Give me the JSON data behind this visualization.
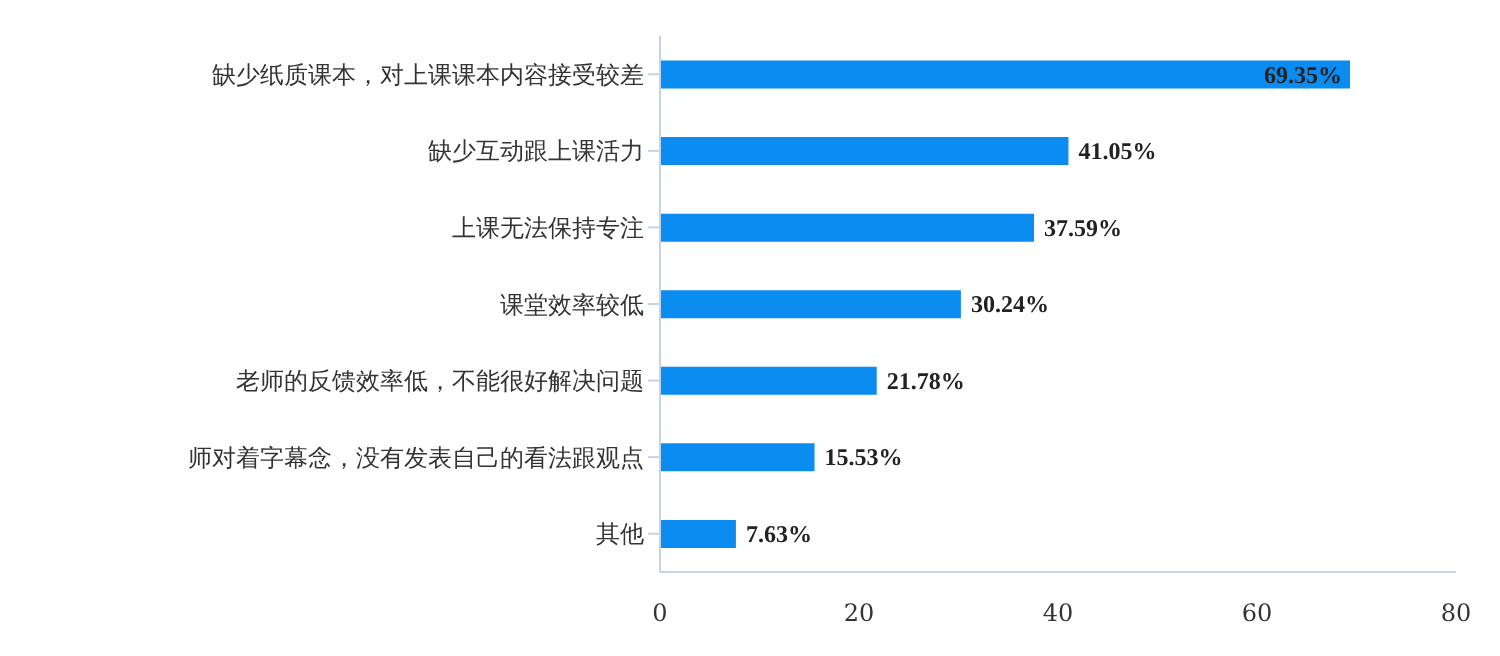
{
  "chart_data": {
    "type": "bar",
    "orientation": "horizontal",
    "categories": [
      "缺少纸质课本，对上课课本内容接受较差",
      "缺少互动跟上课活力",
      "上课无法保持专注",
      "课堂效率较低",
      "老师的反馈效率低，不能很好解决问题",
      "师对着字幕念，没有发表自己的看法跟观点",
      "其他"
    ],
    "values": [
      69.35,
      41.05,
      37.59,
      30.24,
      21.78,
      15.53,
      7.63
    ],
    "value_labels": [
      "69.35%",
      "41.05%",
      "37.59%",
      "30.24%",
      "21.78%",
      "15.53%",
      "7.63%"
    ],
    "color": "#0a8cf0",
    "xlim": [
      0,
      80
    ],
    "xticks": [
      0,
      20,
      40,
      60,
      80
    ],
    "grid": false,
    "legend": false
  }
}
